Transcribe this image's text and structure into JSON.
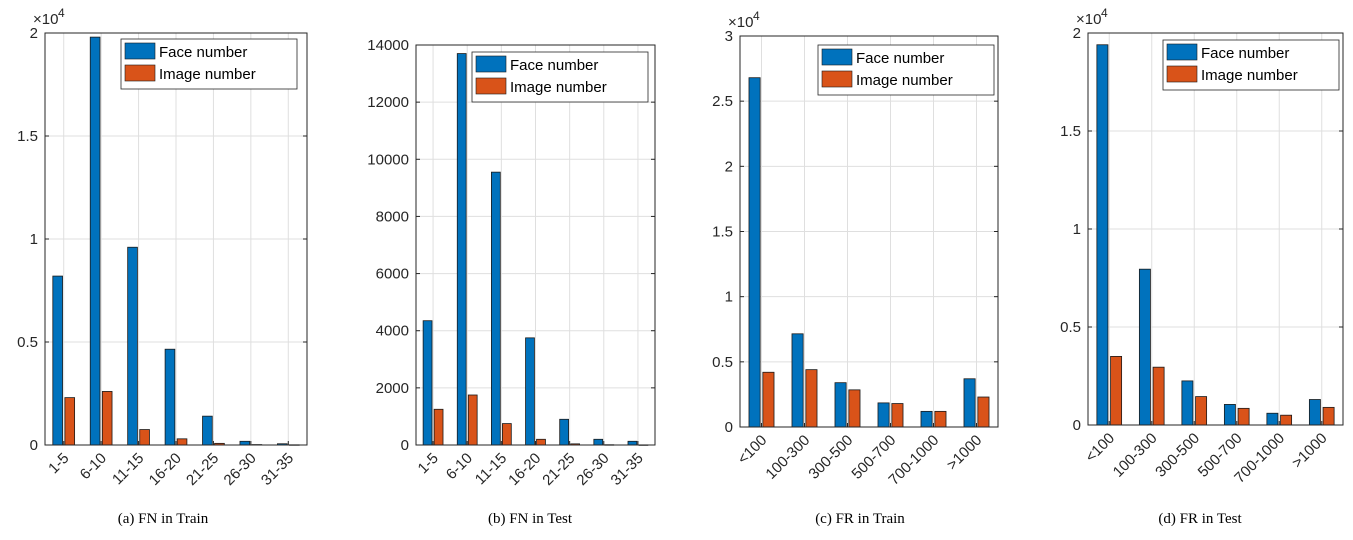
{
  "colors": {
    "face": "#0072BD",
    "image": "#D95319",
    "grid": "#dfdfdf",
    "axis": "#262626"
  },
  "legend_labels": [
    "Face number",
    "Image number"
  ],
  "captions": [
    "(a)  FN  in  Train",
    "(b)  FN  in  Test",
    "(c)  FR  in  Train",
    "(d)  FR  in  Test"
  ],
  "chart_data": [
    {
      "type": "bar",
      "categories": [
        "1-5",
        "6-10",
        "11-15",
        "16-20",
        "21-25",
        "26-30",
        "31-35"
      ],
      "series": [
        {
          "name": "Face number",
          "values": [
            8200,
            19800,
            9600,
            4650,
            1400,
            180,
            60
          ]
        },
        {
          "name": "Image number",
          "values": [
            2300,
            2600,
            750,
            300,
            80,
            20,
            10
          ]
        }
      ],
      "ylim": [
        0,
        20000
      ],
      "yticks": [
        0,
        5000,
        10000,
        15000,
        20000
      ],
      "ytick_labels": [
        "0",
        "0.5",
        "1",
        "1.5",
        "2"
      ],
      "y_exponent_label": "×10",
      "y_exponent_power": "4",
      "xtick_rotation": -45,
      "grid": true,
      "legend": "top-right"
    },
    {
      "type": "bar",
      "categories": [
        "1-5",
        "6-10",
        "11-15",
        "16-20",
        "21-25",
        "26-30",
        "31-35"
      ],
      "series": [
        {
          "name": "Face number",
          "values": [
            4350,
            13700,
            9550,
            3750,
            900,
            200,
            130
          ]
        },
        {
          "name": "Image number",
          "values": [
            1250,
            1750,
            750,
            200,
            40,
            10,
            5
          ]
        }
      ],
      "ylim": [
        0,
        14000
      ],
      "yticks": [
        0,
        2000,
        4000,
        6000,
        8000,
        10000,
        12000,
        14000
      ],
      "ytick_labels": [
        "0",
        "2000",
        "4000",
        "6000",
        "8000",
        "10000",
        "12000",
        "14000"
      ],
      "y_exponent_label": "",
      "y_exponent_power": "",
      "xtick_rotation": -45,
      "grid": true,
      "legend": "top-right"
    },
    {
      "type": "bar",
      "categories": [
        "<100",
        "100-300",
        "300-500",
        "500-700",
        "700-1000",
        ">1000"
      ],
      "series": [
        {
          "name": "Face number",
          "values": [
            26800,
            7150,
            3400,
            1850,
            1200,
            3700
          ]
        },
        {
          "name": "Image number",
          "values": [
            4200,
            4400,
            2850,
            1800,
            1200,
            2300
          ]
        }
      ],
      "ylim": [
        0,
        30000
      ],
      "yticks": [
        0,
        5000,
        10000,
        15000,
        20000,
        25000,
        30000
      ],
      "ytick_labels": [
        "0",
        "0.5",
        "1",
        "1.5",
        "2",
        "2.5",
        "3"
      ],
      "y_exponent_label": "×10",
      "y_exponent_power": "4",
      "xtick_rotation": -45,
      "grid": true,
      "legend": "top-right"
    },
    {
      "type": "bar",
      "categories": [
        "<100",
        "100-300",
        "300-500",
        "500-700",
        "700-1000",
        ">1000"
      ],
      "series": [
        {
          "name": "Face number",
          "values": [
            19400,
            7950,
            2250,
            1050,
            600,
            1300
          ]
        },
        {
          "name": "Image number",
          "values": [
            3500,
            2950,
            1450,
            850,
            500,
            900
          ]
        }
      ],
      "ylim": [
        0,
        20000
      ],
      "yticks": [
        0,
        5000,
        10000,
        15000,
        20000
      ],
      "ytick_labels": [
        "0",
        "0.5",
        "1",
        "1.5",
        "2"
      ],
      "y_exponent_label": "×10",
      "y_exponent_power": "4",
      "xtick_rotation": -45,
      "grid": true,
      "legend": "top-right"
    }
  ]
}
